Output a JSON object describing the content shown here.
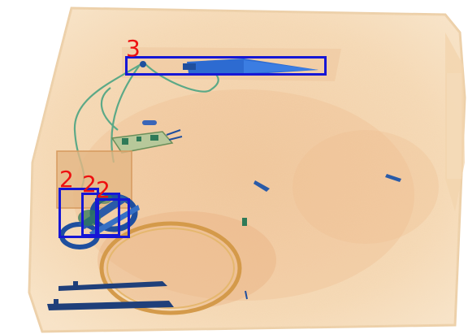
{
  "scene": {
    "description_colors": {
      "background": "#ffffff",
      "bag_fill": "#f3d9b4",
      "bag_edge": "#e9c795",
      "organic": "#e5a877",
      "metal_blue": "#1f4f9e",
      "wire_green": "#5ca987",
      "box_color": "#1616d6",
      "label_color": "#ee1010"
    }
  },
  "detections": [
    {
      "label": "3"
    },
    {
      "label": "2"
    },
    {
      "label": "2"
    },
    {
      "label": "2"
    }
  ]
}
